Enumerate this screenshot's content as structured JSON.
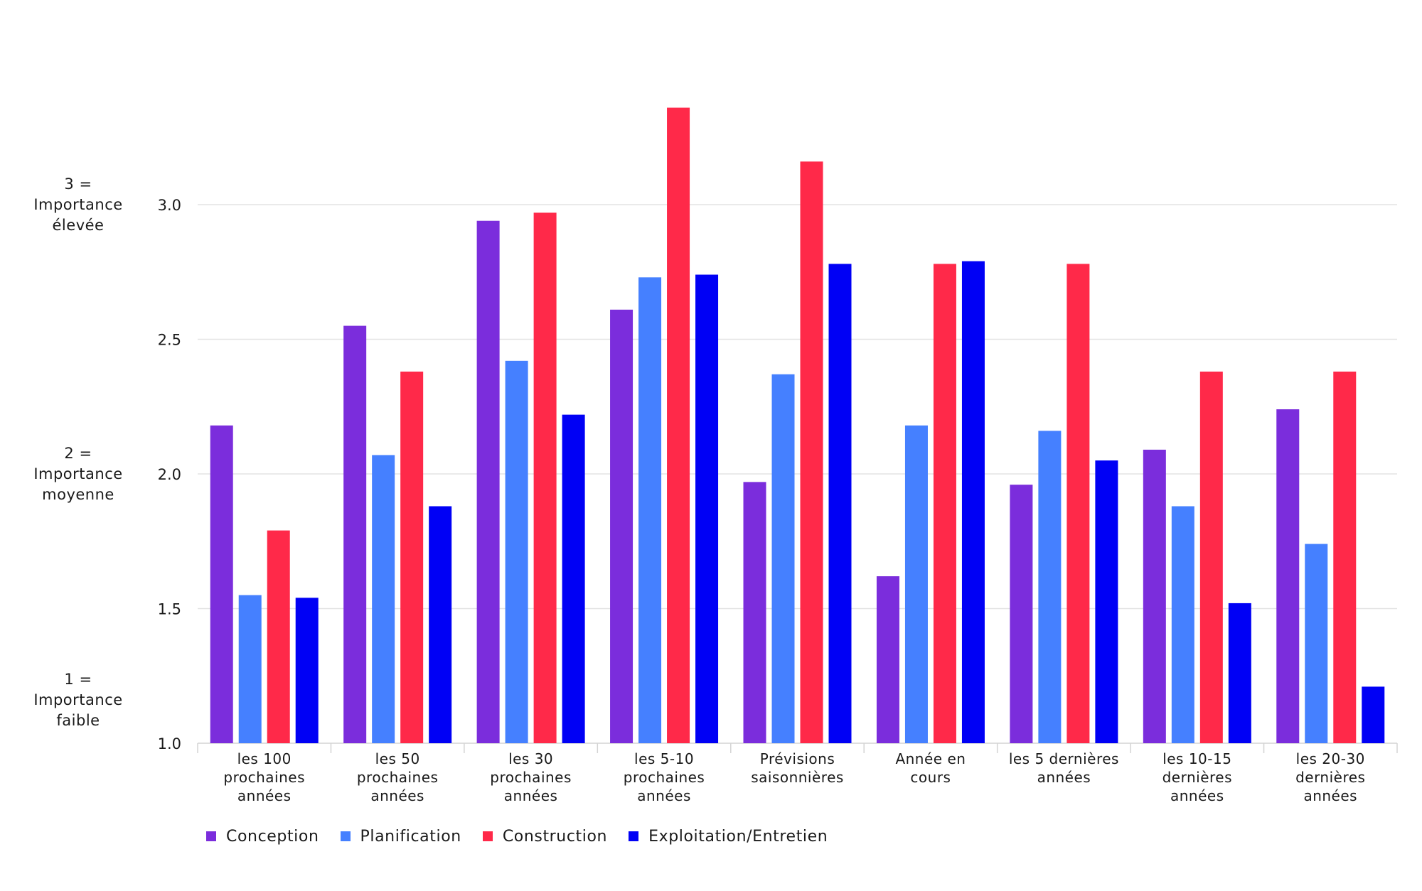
{
  "chart_data": {
    "type": "bar",
    "title": "",
    "xlabel": "",
    "ylabel": "",
    "ylim": [
      1.0,
      3.4
    ],
    "yticks": [
      "1.0",
      "1.5",
      "2.0",
      "2.5",
      "3.0"
    ],
    "grid": true,
    "legend_position": "bottom-left",
    "categories": [
      [
        "les 100",
        "prochaines",
        "années"
      ],
      [
        "les 50",
        "prochaines",
        "années"
      ],
      [
        "les 30",
        "prochaines",
        "années"
      ],
      [
        "les 5-10",
        "prochaines",
        "années"
      ],
      [
        "Prévisions",
        "saisonnières"
      ],
      [
        "Année en",
        "cours"
      ],
      [
        "les 5 dernières",
        "années"
      ],
      [
        "les 10-15",
        "dernières",
        "années"
      ],
      [
        "les 20-30",
        "dernières",
        "années"
      ]
    ],
    "series": [
      {
        "name": "Conception",
        "color": "#7b2ddc",
        "values": [
          2.18,
          2.55,
          2.94,
          2.61,
          1.97,
          1.62,
          1.96,
          2.09,
          2.24
        ]
      },
      {
        "name": "Planification",
        "color": "#4580ff",
        "values": [
          1.55,
          2.07,
          2.42,
          2.73,
          2.37,
          2.18,
          2.16,
          1.88,
          1.74
        ]
      },
      {
        "name": "Construction",
        "color": "#ff2949",
        "values": [
          1.79,
          2.38,
          2.97,
          3.36,
          3.16,
          2.78,
          2.78,
          2.38,
          2.38
        ]
      },
      {
        "name": "Exploitation/Entretien",
        "color": "#0000f5",
        "values": [
          1.54,
          1.88,
          2.22,
          2.74,
          2.78,
          2.79,
          2.05,
          1.52,
          1.21
        ]
      }
    ],
    "side_labels": [
      {
        "lines": [
          "3 =",
          "Importance",
          "élevée"
        ],
        "value": 3
      },
      {
        "lines": [
          "2 =",
          "Importance",
          "moyenne"
        ],
        "value": 2
      },
      {
        "lines": [
          "1 =",
          "Importance",
          "faible"
        ],
        "value": 1.16
      }
    ]
  }
}
